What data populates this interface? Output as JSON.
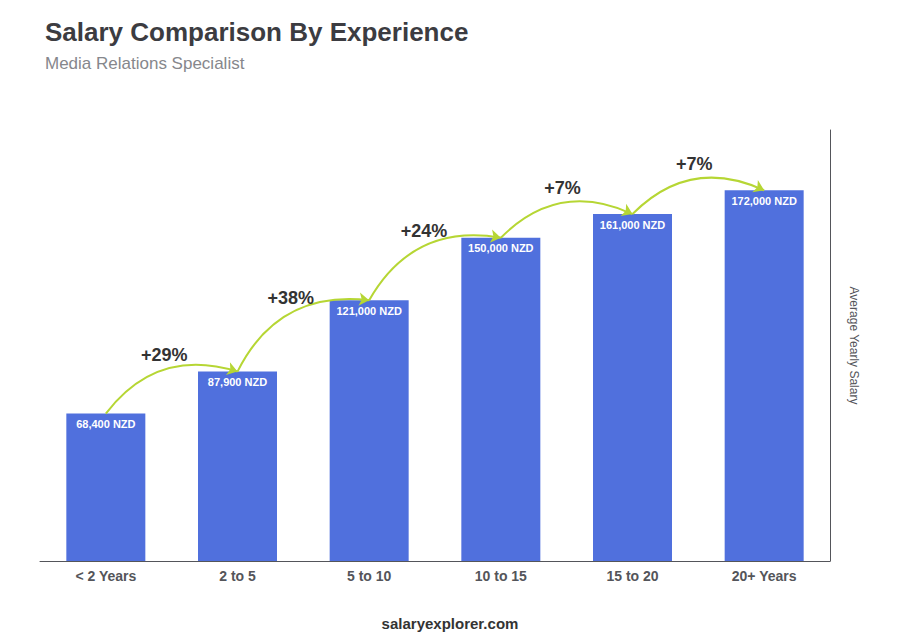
{
  "chart_data": {
    "type": "bar",
    "title": "Salary Comparison By Experience",
    "subtitle": "Media Relations Specialist",
    "ylabel": "Average Yearly Salary",
    "footer": "salaryexplorer.com",
    "categories": [
      "< 2 Years",
      "2 to 5",
      "5 to 10",
      "10 to 15",
      "15 to 20",
      "20+ Years"
    ],
    "values": [
      68400,
      87900,
      121000,
      150000,
      161000,
      172000
    ],
    "value_labels": [
      "68,400 NZD",
      "87,900 NZD",
      "121,000 NZD",
      "150,000 NZD",
      "161,000 NZD",
      "172,000 NZD"
    ],
    "data_labels": true,
    "annotations": [
      "+29%",
      "+38%",
      "+24%",
      "+7%",
      "+7%"
    ],
    "ylim": [
      0,
      200000
    ],
    "yticks": [],
    "tick_labels": "x",
    "grid": false
  }
}
